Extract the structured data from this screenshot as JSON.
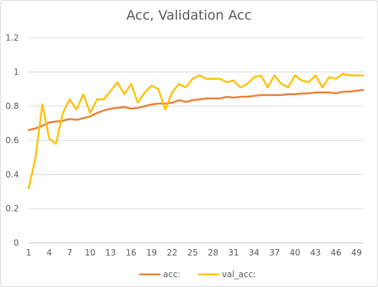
{
  "chart_data": {
    "type": "line",
    "title": "Acc, Validation Acc",
    "xlabel": "",
    "ylabel": "",
    "ylim": [
      0,
      1.2
    ],
    "yticks": [
      0,
      0.2,
      0.4,
      0.6,
      0.8,
      1,
      1.2
    ],
    "ytick_labels": [
      "0",
      "0.2",
      "0.4",
      "0.6",
      "0.8",
      "1",
      "1.2"
    ],
    "xlim": [
      1,
      50
    ],
    "xtick_labels": [
      "1",
      "4",
      "7",
      "10",
      "13",
      "16",
      "19",
      "22",
      "25",
      "28",
      "31",
      "34",
      "37",
      "40",
      "43",
      "46",
      "49"
    ],
    "grid": true,
    "legend_position": "bottom",
    "x": [
      1,
      2,
      3,
      4,
      5,
      6,
      7,
      8,
      9,
      10,
      11,
      12,
      13,
      14,
      15,
      16,
      17,
      18,
      19,
      20,
      21,
      22,
      23,
      24,
      25,
      26,
      27,
      28,
      29,
      30,
      31,
      32,
      33,
      34,
      35,
      36,
      37,
      38,
      39,
      40,
      41,
      42,
      43,
      44,
      45,
      46,
      47,
      48,
      49,
      50
    ],
    "series": [
      {
        "name": "acc:",
        "color": "#ED7D31",
        "values": [
          0.66,
          0.67,
          0.685,
          0.705,
          0.71,
          0.715,
          0.725,
          0.72,
          0.73,
          0.74,
          0.76,
          0.775,
          0.785,
          0.79,
          0.795,
          0.785,
          0.79,
          0.8,
          0.81,
          0.815,
          0.815,
          0.82,
          0.835,
          0.825,
          0.835,
          0.84,
          0.845,
          0.845,
          0.845,
          0.855,
          0.85,
          0.855,
          0.855,
          0.86,
          0.865,
          0.865,
          0.865,
          0.865,
          0.87,
          0.87,
          0.875,
          0.875,
          0.88,
          0.88,
          0.88,
          0.875,
          0.885,
          0.885,
          0.89,
          0.895
        ]
      },
      {
        "name": "val_acc:",
        "color": "#FFC000",
        "values": [
          0.32,
          0.5,
          0.81,
          0.61,
          0.58,
          0.76,
          0.84,
          0.78,
          0.87,
          0.76,
          0.84,
          0.84,
          0.89,
          0.94,
          0.87,
          0.93,
          0.82,
          0.88,
          0.92,
          0.9,
          0.78,
          0.88,
          0.93,
          0.91,
          0.96,
          0.98,
          0.96,
          0.96,
          0.96,
          0.94,
          0.95,
          0.91,
          0.93,
          0.97,
          0.98,
          0.91,
          0.98,
          0.93,
          0.91,
          0.98,
          0.95,
          0.94,
          0.98,
          0.91,
          0.97,
          0.96,
          0.99,
          0.98,
          0.98,
          0.98
        ]
      }
    ]
  }
}
